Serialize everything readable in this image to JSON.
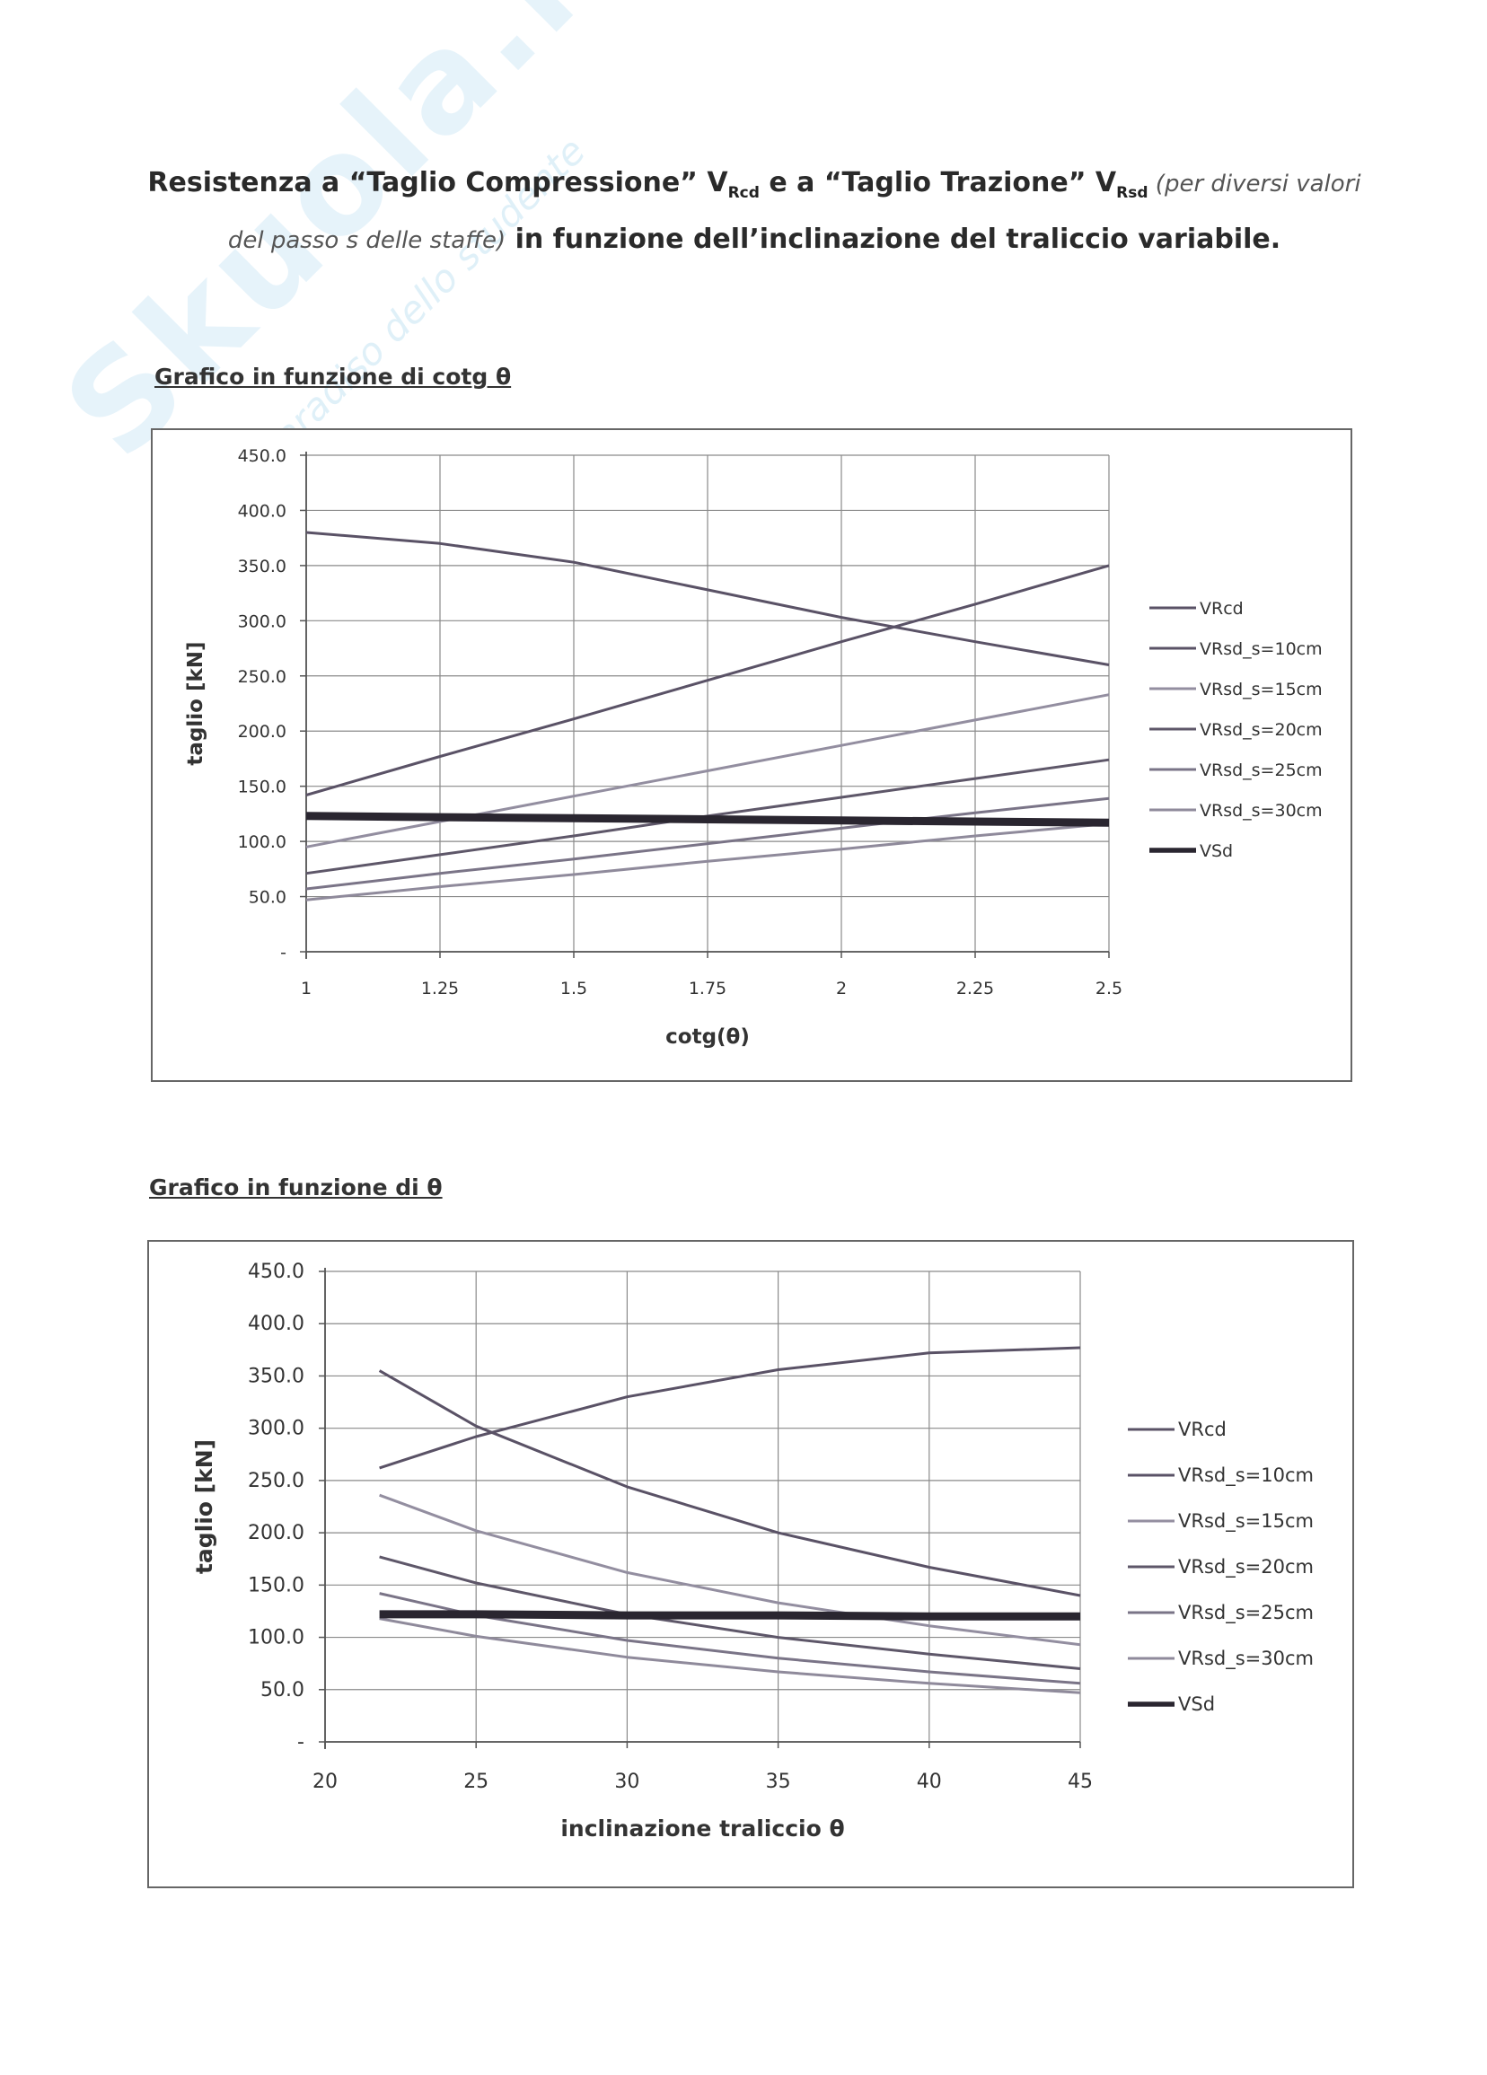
{
  "watermark": {
    "text": "Skuola.net",
    "subtext": "il paradiso dello studente"
  },
  "header": {
    "line1_part1": "Resistenza a “Taglio Compressione” V",
    "line1_sub1": "Rcd",
    "line1_part2": " e a “Taglio Trazione” V",
    "line1_sub2": "Rsd",
    "line1_italic": " (per diversi valori",
    "line2_italic": "del passo s delle staffe)",
    "line2_bold": " in funzione dell’inclinazione del traliccio variabile."
  },
  "sections": {
    "cotg_heading": "Grafico in funzione di cotg θ",
    "theta_heading": "Grafico in funzione di θ"
  },
  "chart_data": [
    {
      "type": "line",
      "title": "",
      "xlabel": "cotg(θ)",
      "ylabel": "taglio [kN]",
      "xlim": [
        1,
        2.5
      ],
      "ylim": [
        0,
        450
      ],
      "xticks": [
        1,
        1.25,
        1.5,
        1.75,
        2,
        2.25,
        2.5
      ],
      "xtick_labels": [
        "1",
        "1.25",
        "1.5",
        "1.75",
        "2",
        "2.25",
        "2.5"
      ],
      "yticks": [
        0,
        50,
        100,
        150,
        200,
        250,
        300,
        350,
        400,
        450
      ],
      "ytick_labels": [
        "-",
        "50.0",
        "100.0",
        "150.0",
        "200.0",
        "250.0",
        "300.0",
        "350.0",
        "400.0",
        "450.0"
      ],
      "grid": true,
      "legend_position": "right",
      "x": [
        1,
        1.25,
        1.5,
        1.75,
        2,
        2.25,
        2.5
      ],
      "series": [
        {
          "name": "VRcd",
          "color": "#5a5266",
          "width": 3,
          "values": [
            380,
            370,
            353,
            328,
            303,
            281,
            260
          ]
        },
        {
          "name": "VRsd_s=10cm",
          "color": "#5a5266",
          "width": 3,
          "values": [
            142,
            177,
            211,
            246,
            281,
            315,
            350
          ]
        },
        {
          "name": "VRsd_s=15cm",
          "color": "#938ea0",
          "width": 3,
          "values": [
            95,
            118,
            141,
            164,
            187,
            210,
            233
          ]
        },
        {
          "name": "VRsd_s=20cm",
          "color": "#5e5769",
          "width": 3,
          "values": [
            71,
            88,
            105,
            123,
            140,
            157,
            174
          ]
        },
        {
          "name": "VRsd_s=25cm",
          "color": "#7a7487",
          "width": 3,
          "values": [
            57,
            71,
            84,
            98,
            112,
            126,
            139
          ]
        },
        {
          "name": "VRsd_s=30cm",
          "color": "#8f8a9b",
          "width": 3,
          "values": [
            47,
            59,
            70,
            82,
            93,
            105,
            116
          ]
        },
        {
          "name": "VSd",
          "color": "#2a2630",
          "width": 9,
          "values": [
            123,
            122,
            121,
            120,
            119,
            118,
            117
          ]
        }
      ]
    },
    {
      "type": "line",
      "title": "",
      "xlabel": "inclinazione traliccio θ",
      "ylabel": "taglio [kN]",
      "xlim": [
        20,
        45
      ],
      "ylim": [
        0,
        450
      ],
      "xticks": [
        20,
        25,
        30,
        35,
        40,
        45
      ],
      "xtick_labels": [
        "20",
        "25",
        "30",
        "35",
        "40",
        "45"
      ],
      "yticks": [
        0,
        50,
        100,
        150,
        200,
        250,
        300,
        350,
        400,
        450
      ],
      "ytick_labels": [
        "-",
        "50.0",
        "100.0",
        "150.0",
        "200.0",
        "250.0",
        "300.0",
        "350.0",
        "400.0",
        "450.0"
      ],
      "grid": true,
      "legend_position": "right",
      "x": [
        21.8,
        25,
        30,
        35,
        40,
        45
      ],
      "series": [
        {
          "name": "VRcd",
          "color": "#5a5266",
          "width": 3,
          "values": [
            262,
            292,
            330,
            356,
            372,
            377
          ]
        },
        {
          "name": "VRsd_s=10cm",
          "color": "#5a5266",
          "width": 3,
          "values": [
            355,
            302,
            244,
            200,
            167,
            140
          ]
        },
        {
          "name": "VRsd_s=15cm",
          "color": "#938ea0",
          "width": 3,
          "values": [
            236,
            202,
            162,
            133,
            111,
            93
          ]
        },
        {
          "name": "VRsd_s=20cm",
          "color": "#5e5769",
          "width": 3,
          "values": [
            177,
            152,
            122,
            100,
            84,
            70
          ]
        },
        {
          "name": "VRsd_s=25cm",
          "color": "#7a7487",
          "width": 3,
          "values": [
            142,
            121,
            97,
            80,
            67,
            56
          ]
        },
        {
          "name": "VRsd_s=30cm",
          "color": "#8f8a9b",
          "width": 3,
          "values": [
            118,
            101,
            81,
            67,
            56,
            47
          ]
        },
        {
          "name": "VSd",
          "color": "#2a2630",
          "width": 9,
          "values": [
            122,
            122,
            121,
            121,
            120,
            120
          ]
        }
      ]
    }
  ]
}
